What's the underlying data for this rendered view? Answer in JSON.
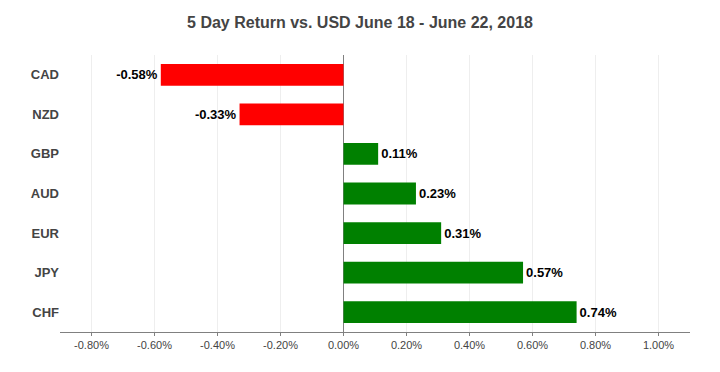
{
  "chart_data": {
    "type": "bar",
    "orientation": "horizontal",
    "title": "5 Day Return vs. USD June 18 - June 22, 2018",
    "categories": [
      "CAD",
      "NZD",
      "GBP",
      "AUD",
      "EUR",
      "JPY",
      "CHF"
    ],
    "values": [
      -0.0058,
      -0.0033,
      0.0011,
      0.0023,
      0.0031,
      0.0057,
      0.0074
    ],
    "value_labels": [
      "-0.58%",
      "-0.33%",
      "0.11%",
      "0.23%",
      "0.31%",
      "0.57%",
      "0.74%"
    ],
    "colors": [
      "#FF0000",
      "#FF0000",
      "#008000",
      "#008000",
      "#008000",
      "#008000",
      "#008000"
    ],
    "xlim": [
      -0.009,
      0.011
    ],
    "xticks": [
      {
        "value": -0.008,
        "label": "-0.80%"
      },
      {
        "value": -0.006,
        "label": "-0.60%"
      },
      {
        "value": -0.004,
        "label": "-0.40%"
      },
      {
        "value": -0.002,
        "label": "-0.20%"
      },
      {
        "value": 0.0,
        "label": "0.00%"
      },
      {
        "value": 0.002,
        "label": "0.20%"
      },
      {
        "value": 0.004,
        "label": "0.40%"
      },
      {
        "value": 0.006,
        "label": "0.60%"
      },
      {
        "value": 0.008,
        "label": "0.80%"
      },
      {
        "value": 0.01,
        "label": "1.00%"
      }
    ],
    "grid": true,
    "data_labels": true
  }
}
